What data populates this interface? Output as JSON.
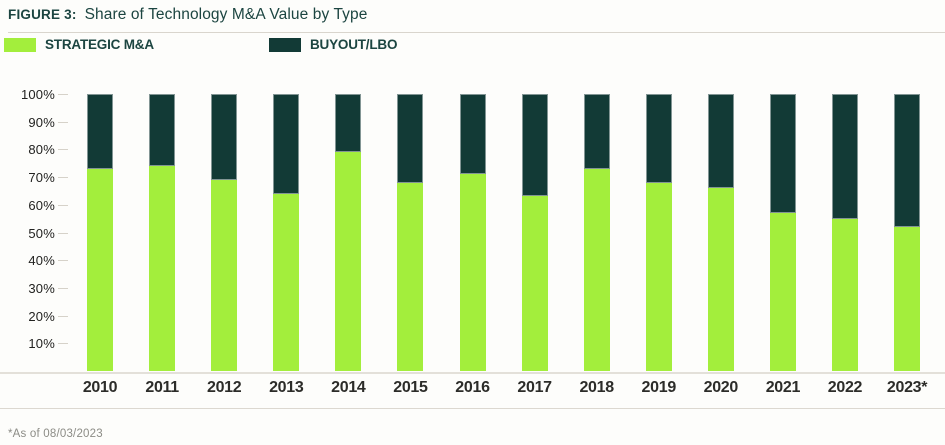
{
  "figure": {
    "label": "FIGURE 3:",
    "title": "Share of Technology M&A Value by Type"
  },
  "legend": {
    "items": [
      {
        "label": "STRATEGIC M&A",
        "color": "#a3ee3c"
      },
      {
        "label": "BUYOUT/LBO",
        "color": "#123a36"
      }
    ]
  },
  "footnote": "*As of 08/03/2023",
  "colors": {
    "strategic": "#a3ee3c",
    "buyout": "#123a36",
    "title_text": "#1c4541",
    "axis_text": "#222220",
    "rule": "#d9d5cd"
  },
  "chart_data": {
    "type": "bar",
    "stacked": true,
    "title": "Share of Technology M&A Value by Type",
    "categories": [
      "2010",
      "2011",
      "2012",
      "2013",
      "2014",
      "2015",
      "2016",
      "2017",
      "2018",
      "2019",
      "2020",
      "2021",
      "2022",
      "2023*"
    ],
    "series": [
      {
        "name": "STRATEGIC M&A",
        "color": "#a3ee3c",
        "values": [
          73,
          74,
          69,
          64,
          79,
          68,
          71,
          63,
          73,
          68,
          66,
          57,
          55,
          52
        ]
      },
      {
        "name": "BUYOUT/LBO",
        "color": "#123a36",
        "values": [
          27,
          26,
          31,
          36,
          21,
          32,
          29,
          37,
          27,
          32,
          34,
          43,
          45,
          48
        ]
      }
    ],
    "xlabel": "",
    "ylabel": "",
    "ylim": [
      0,
      100
    ],
    "ytick_labels": [
      "10%",
      "20%",
      "30%",
      "40%",
      "50%",
      "60%",
      "70%",
      "80%",
      "90%",
      "100%"
    ],
    "grid": false,
    "legend_position": "top"
  }
}
